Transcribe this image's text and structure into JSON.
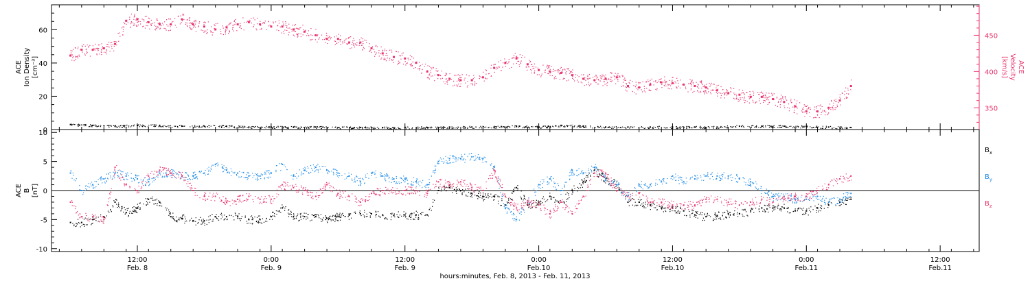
{
  "chart_data": [
    {
      "type": "scatter",
      "title": "",
      "ylabel_lines": [
        "ACE",
        "Ion Density",
        "[cm⁻³]"
      ],
      "y2label_lines": [
        "ACE",
        "Velocity",
        "[km/s]"
      ],
      "ylim": [
        0,
        75
      ],
      "y2lim": [
        320,
        492
      ],
      "yticks": [
        0,
        20,
        40,
        60
      ],
      "y2ticks": [
        350,
        400,
        450
      ],
      "colors": {
        "density": "#000000",
        "velocity": "#e8336b"
      },
      "series": [
        {
          "name": "Velocity",
          "axis": "right",
          "color": "#e8336b",
          "x": [
            0,
            1,
            2,
            3,
            4,
            5,
            6,
            7,
            8,
            9,
            10,
            11,
            12,
            13,
            14,
            15,
            16,
            17,
            18,
            19,
            20,
            21,
            22,
            23,
            24,
            25,
            26,
            27,
            28,
            29,
            30,
            31,
            32,
            33,
            34,
            35,
            36,
            37,
            38,
            39,
            40,
            41,
            42,
            43,
            44,
            45,
            46,
            47,
            48,
            49,
            50,
            51,
            52,
            53,
            54,
            55,
            56,
            57,
            58,
            59,
            60,
            61,
            62,
            63,
            64,
            65,
            66,
            67,
            68,
            69,
            70
          ],
          "values": [
            422,
            430,
            430,
            432,
            438,
            470,
            472,
            468,
            465,
            465,
            472,
            465,
            462,
            458,
            461,
            465,
            468,
            465,
            462,
            462,
            458,
            455,
            450,
            445,
            445,
            440,
            440,
            432,
            425,
            420,
            418,
            412,
            400,
            395,
            390,
            388,
            388,
            392,
            405,
            412,
            418,
            410,
            402,
            400,
            398,
            395,
            390,
            388,
            390,
            392,
            380,
            378,
            382,
            385,
            384,
            382,
            380,
            378,
            374,
            370,
            368,
            365,
            365,
            362,
            358,
            352,
            345,
            345,
            350,
            360,
            380
          ]
        },
        {
          "name": "Ion Density",
          "axis": "left",
          "color": "#000000",
          "x": [
            0,
            2,
            4,
            6,
            8,
            10,
            12,
            14,
            16,
            18,
            20,
            22,
            24,
            26,
            28,
            30,
            32,
            34,
            36,
            38,
            40,
            42,
            44,
            46,
            48,
            50,
            52,
            54,
            56,
            58,
            60,
            62,
            64,
            66,
            68,
            70
          ],
          "values": [
            3,
            2.5,
            2,
            2.5,
            2.5,
            2,
            2,
            2,
            1.5,
            1.5,
            1.5,
            1.5,
            1.2,
            1.2,
            1.2,
            1.2,
            1.2,
            1.5,
            1.5,
            1.5,
            2,
            1.5,
            2.5,
            2,
            1.5,
            1.5,
            1.5,
            1.5,
            1.5,
            1.5,
            2,
            2,
            2,
            1.8,
            1.5,
            1.2
          ]
        }
      ]
    },
    {
      "type": "scatter",
      "title": "",
      "ylabel_lines": [
        "ACE",
        "B",
        "[nT]"
      ],
      "ylim": [
        -10.5,
        10.5
      ],
      "yticks": [
        -10,
        -5,
        0,
        5,
        10
      ],
      "legend": [
        "Bx",
        "By",
        "Bz"
      ],
      "legend_placement": "right",
      "series": [
        {
          "name": "Bx",
          "color": "#000000",
          "x": [
            0,
            1,
            2,
            3,
            4,
            5,
            6,
            7,
            8,
            9,
            10,
            11,
            12,
            13,
            14,
            15,
            16,
            17,
            18,
            19,
            20,
            21,
            22,
            23,
            24,
            25,
            26,
            27,
            28,
            29,
            30,
            31,
            32,
            33,
            34,
            35,
            36,
            37,
            38,
            39,
            40,
            41,
            42,
            43,
            44,
            45,
            46,
            47,
            48,
            49,
            50,
            51,
            52,
            53,
            54,
            55,
            56,
            57,
            58,
            59,
            60,
            61,
            62,
            63,
            64,
            65,
            66,
            67,
            68,
            69,
            70
          ],
          "values": [
            -5.5,
            -5.5,
            -5,
            -4.5,
            -2,
            -3.8,
            -3,
            -1.5,
            -2,
            -4.5,
            -4.8,
            -5.2,
            -5.2,
            -4.5,
            -4.5,
            -4.5,
            -5,
            -5,
            -4.5,
            -3,
            -4.5,
            -4.5,
            -4.5,
            -4.8,
            -4.5,
            -4.2,
            -4.0,
            -4.0,
            -4.2,
            -4.3,
            -4.2,
            -4.2,
            -4.2,
            0,
            0.5,
            0,
            -0.5,
            -1,
            -1,
            -2.5,
            0.5,
            -2.5,
            -2,
            -1,
            -2,
            0,
            1.5,
            3.5,
            2,
            1,
            -2,
            -2,
            -2.5,
            -3,
            -3,
            -3.5,
            -4.2,
            -4.5,
            -4.3,
            -4,
            -4,
            -3.5,
            -3,
            -3,
            -3,
            -3.5,
            -3.5,
            -3,
            -2.5,
            -2,
            -1.5
          ]
        },
        {
          "name": "By",
          "color": "#1f8be6",
          "x": [
            0,
            1,
            2,
            3,
            4,
            5,
            6,
            7,
            8,
            9,
            10,
            11,
            12,
            13,
            14,
            15,
            16,
            17,
            18,
            19,
            20,
            21,
            22,
            23,
            24,
            25,
            26,
            27,
            28,
            29,
            30,
            31,
            32,
            33,
            34,
            35,
            36,
            37,
            38,
            39,
            40,
            41,
            42,
            43,
            44,
            45,
            46,
            47,
            48,
            49,
            50,
            51,
            52,
            53,
            54,
            55,
            56,
            57,
            58,
            59,
            60,
            61,
            62,
            63,
            64,
            65,
            66,
            67,
            68,
            69,
            70
          ],
          "values": [
            3,
            0,
            1,
            2,
            3,
            2.5,
            2,
            1.5,
            3,
            3,
            2.5,
            2.5,
            3,
            4.5,
            3.5,
            3,
            2.5,
            2.5,
            3,
            4.5,
            2.5,
            3.5,
            4,
            3.5,
            3,
            2.5,
            1.5,
            3,
            2.5,
            2,
            2,
            1.5,
            1,
            5,
            5.5,
            5.5,
            5.8,
            5.5,
            4,
            -3,
            -5,
            -2,
            1,
            2,
            0,
            3.5,
            3,
            4,
            2,
            1,
            -1,
            1,
            1,
            1.5,
            2.5,
            1.5,
            2,
            2.5,
            2.5,
            2.5,
            2,
            1.5,
            0,
            -1,
            -1,
            -1.5,
            -1.5,
            -1,
            -2,
            -1.5,
            -0.5
          ]
        },
        {
          "name": "Bz",
          "color": "#e8336b",
          "x": [
            0,
            1,
            2,
            3,
            4,
            5,
            6,
            7,
            8,
            9,
            10,
            11,
            12,
            13,
            14,
            15,
            16,
            17,
            18,
            19,
            20,
            21,
            22,
            23,
            24,
            25,
            26,
            27,
            28,
            29,
            30,
            31,
            32,
            33,
            34,
            35,
            36,
            37,
            38,
            39,
            40,
            41,
            42,
            43,
            44,
            45,
            46,
            47,
            48,
            49,
            50,
            51,
            52,
            53,
            54,
            55,
            56,
            57,
            58,
            59,
            60,
            61,
            62,
            63,
            64,
            65,
            66,
            67,
            68,
            69,
            70
          ],
          "values": [
            -2,
            -4.5,
            -4.5,
            -5,
            4,
            1,
            0,
            2.5,
            3.5,
            3,
            2.5,
            0,
            -1,
            -1,
            -2,
            -1.5,
            -1,
            -1.5,
            -1.5,
            1,
            0.5,
            0,
            -1,
            1,
            -0.5,
            -1,
            -2,
            -0.5,
            0,
            0,
            0,
            0,
            -0.5,
            1.5,
            1,
            1.5,
            0.5,
            0,
            3.5,
            -1,
            -3,
            -2,
            -2.5,
            -4,
            -2,
            -4,
            -1,
            3,
            3,
            0,
            -1,
            -0.5,
            -2,
            -2,
            -2.5,
            -2.5,
            -2.5,
            -1.5,
            -1.5,
            -2,
            -2.5,
            -2,
            -1.5,
            -2,
            -1.5,
            -1,
            -1,
            0,
            1,
            2,
            2.5
          ]
        }
      ]
    }
  ],
  "x_axis": {
    "ticks": [
      {
        "x": 6,
        "line1": "12:00",
        "line2": "Feb. 8"
      },
      {
        "x": 18,
        "line1": "0:00",
        "line2": "Feb. 9"
      },
      {
        "x": 30,
        "line1": "12:00",
        "line2": "Feb. 9"
      },
      {
        "x": 42,
        "line1": "0:00",
        "line2": "Feb.10"
      },
      {
        "x": 54,
        "line1": "12:00",
        "line2": "Feb.10"
      },
      {
        "x": 66,
        "line1": "0:00",
        "line2": "Feb.11"
      },
      {
        "x": 78,
        "line1": "12:00",
        "line2": "Feb.11"
      }
    ],
    "title": "hours:minutes, Feb.  8, 2013 - Feb. 11, 2013",
    "xlim": [
      -1.7,
      81.5
    ]
  },
  "legend_labels": [
    {
      "key": "bx",
      "base": "B",
      "sub": "x",
      "color": "#000000"
    },
    {
      "key": "by",
      "base": "B",
      "sub": "y",
      "color": "#1f8be6"
    },
    {
      "key": "bz",
      "base": "B",
      "sub": "z",
      "color": "#e8336b"
    }
  ]
}
